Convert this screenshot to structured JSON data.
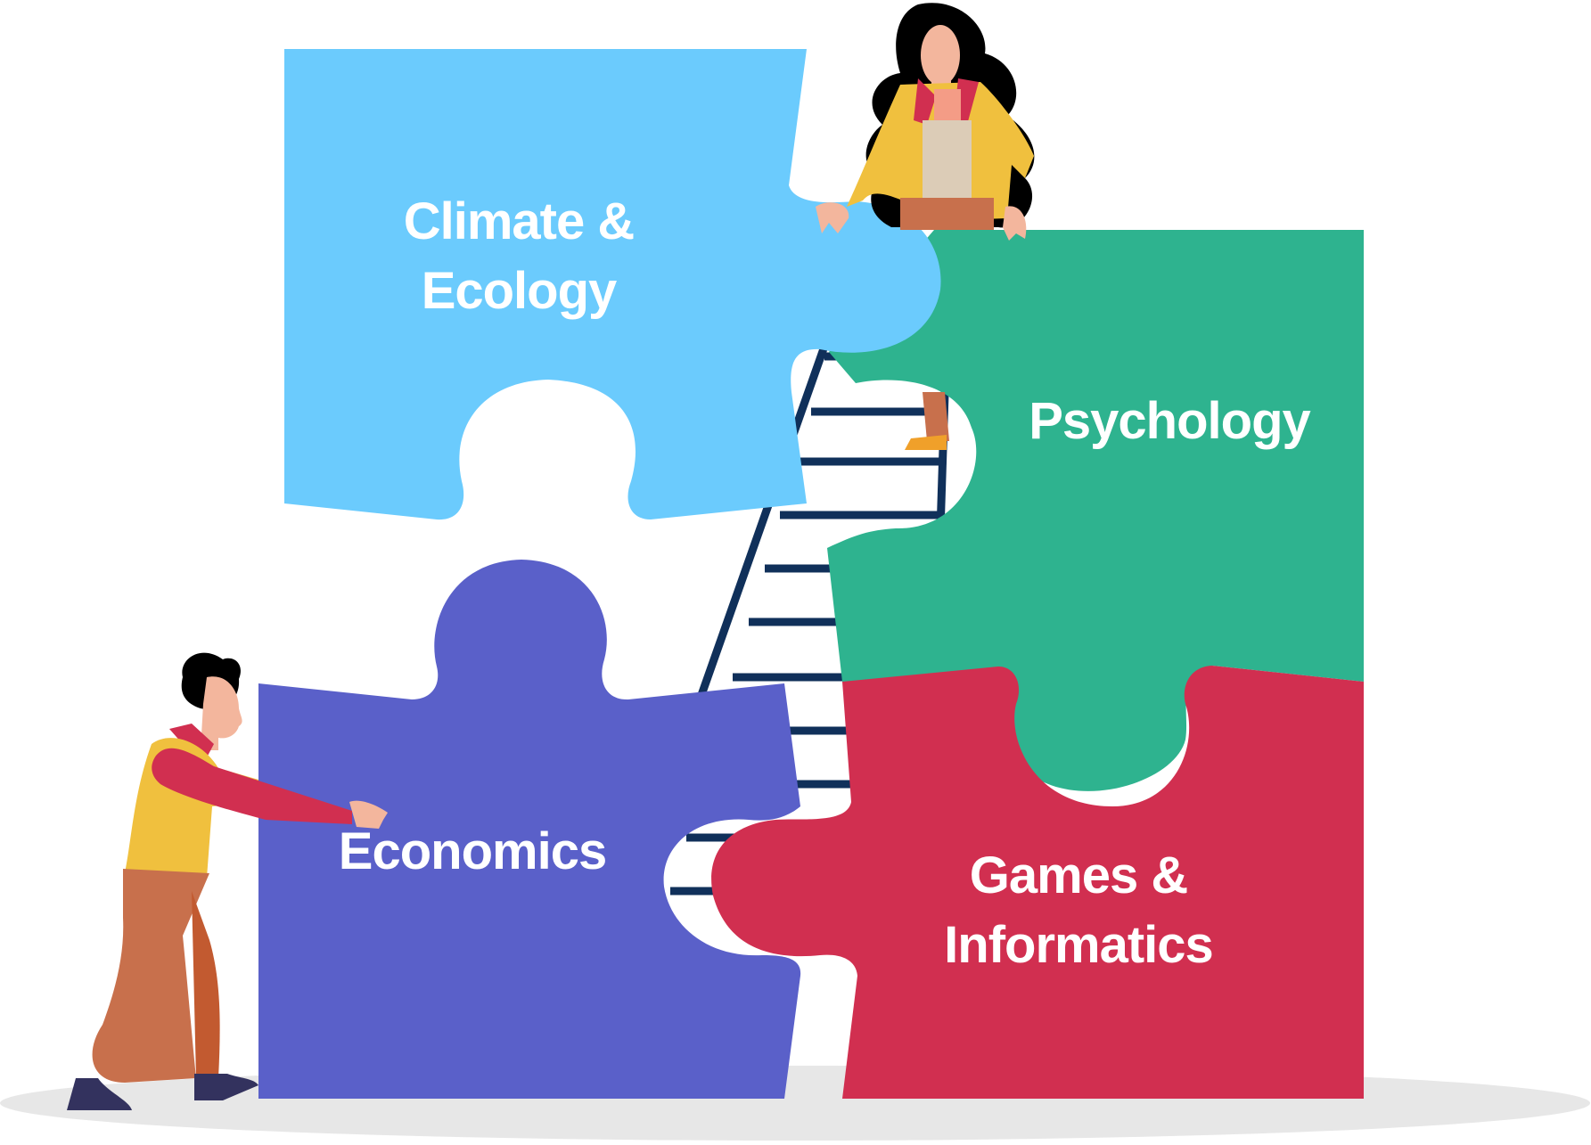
{
  "colors": {
    "climate": "#6BCBFD",
    "psychology": "#2EB38F",
    "economics": "#5A60C9",
    "games": "#D12F50",
    "ladder": "#10305A",
    "shadow": "#E7E7E7",
    "label": "#FFFFFF"
  },
  "pieces": [
    {
      "id": "climate",
      "lines": [
        "Climate &",
        "Ecology"
      ]
    },
    {
      "id": "psychology",
      "lines": [
        "Psychology"
      ]
    },
    {
      "id": "economics",
      "lines": [
        "Economics"
      ]
    },
    {
      "id": "games",
      "lines": [
        "Games &",
        "Informatics"
      ]
    }
  ],
  "figures": [
    "woman-climbing-ladder",
    "man-pushing-puzzle-piece"
  ]
}
